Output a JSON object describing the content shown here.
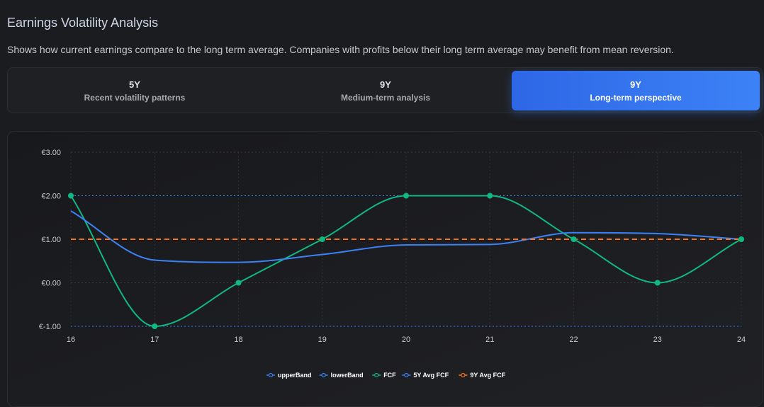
{
  "header": {
    "title": "Earnings Volatility Analysis",
    "subtitle": "Shows how current earnings compare to the long term average. Companies with profits below their long term average may benefit from mean reversion."
  },
  "tabs": [
    {
      "label": "5Y",
      "sub": "Recent volatility patterns",
      "active": false
    },
    {
      "label": "9Y",
      "sub": "Medium-term analysis",
      "active": false
    },
    {
      "label": "9Y",
      "sub": "Long-term perspective",
      "active": true
    }
  ],
  "colors": {
    "accent": "#3b82f6",
    "fcf": "#10b981",
    "avg5": "#3b82f6",
    "avg9": "#f97316",
    "band": "#3b82f6"
  },
  "chart_data": {
    "type": "line",
    "x": [
      "16",
      "17",
      "18",
      "19",
      "20",
      "21",
      "22",
      "23",
      "24"
    ],
    "ylim": [
      -1,
      3
    ],
    "yticks": [
      "€-1.00",
      "€0.00",
      "€1.00",
      "€2.00",
      "€3.00"
    ],
    "ytick_values": [
      -1,
      0,
      1,
      2,
      3
    ],
    "grid": true,
    "legend_position": "bottom",
    "series": [
      {
        "name": "upperBand",
        "values": [
          2,
          2,
          2,
          2,
          2,
          2,
          2,
          2,
          2
        ],
        "color": "#3b82f6",
        "style": "dotted"
      },
      {
        "name": "lowerBand",
        "values": [
          -1,
          -1,
          -1,
          -1,
          -1,
          -1,
          -1,
          -1,
          -1
        ],
        "color": "#3b82f6",
        "style": "dotted"
      },
      {
        "name": "FCF",
        "values": [
          2,
          -1,
          0,
          1,
          2,
          2,
          1,
          0,
          1
        ],
        "color": "#10b981",
        "style": "solid"
      },
      {
        "name": "5Y Avg FCF",
        "values": [
          1.65,
          0.52,
          0.47,
          0.65,
          0.87,
          0.88,
          1.15,
          1.13,
          1.0
        ],
        "color": "#3b82f6",
        "style": "solid"
      },
      {
        "name": "9Y Avg FCF",
        "values": [
          1,
          1,
          1,
          1,
          1,
          1,
          1,
          1,
          1
        ],
        "color": "#f97316",
        "style": "dashed"
      }
    ]
  }
}
